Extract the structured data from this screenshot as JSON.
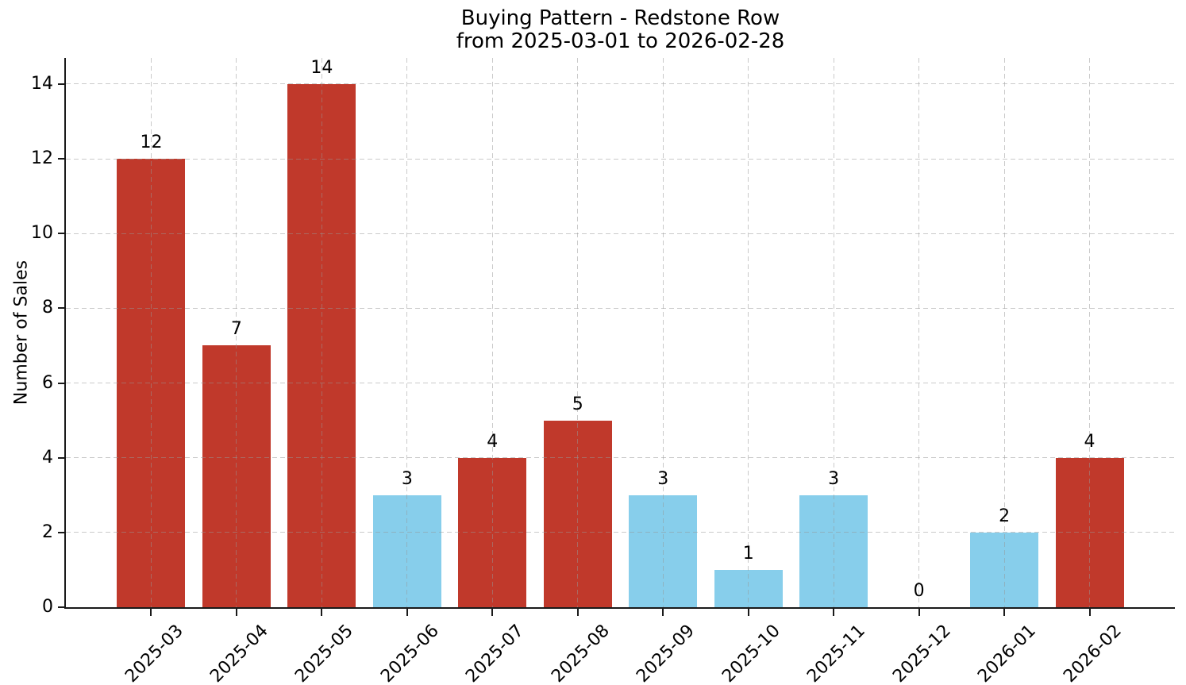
{
  "chart_data": {
    "type": "bar",
    "title": "Buying Pattern - Redstone Row",
    "subtitle": "from 2025-03-01 to 2026-02-28",
    "xlabel": "",
    "ylabel": "Number of Sales",
    "categories": [
      "2025-03",
      "2025-04",
      "2025-05",
      "2025-06",
      "2025-07",
      "2025-08",
      "2025-09",
      "2025-10",
      "2025-11",
      "2025-12",
      "2026-01",
      "2026-02"
    ],
    "values": [
      12,
      7,
      14,
      3,
      4,
      5,
      3,
      1,
      3,
      0,
      2,
      4
    ],
    "value_labels": [
      "12",
      "7",
      "14",
      "3",
      "4",
      "5",
      "3",
      "1",
      "3",
      "0",
      "2",
      "4"
    ],
    "bar_colors": [
      "#C0392B",
      "#C0392B",
      "#C0392B",
      "#87CEEB",
      "#C0392B",
      "#C0392B",
      "#87CEEB",
      "#87CEEB",
      "#87CEEB",
      null,
      "#87CEEB",
      "#C0392B"
    ],
    "accent_colors": {
      "high": "#C0392B",
      "low": "#87CEEB"
    },
    "yticks": [
      0,
      2,
      4,
      6,
      8,
      10,
      12,
      14
    ],
    "ylim": [
      0,
      14.7
    ],
    "grid": true,
    "grid_style": "dashed",
    "xtick_rotation": 45,
    "legend_position": "none"
  }
}
